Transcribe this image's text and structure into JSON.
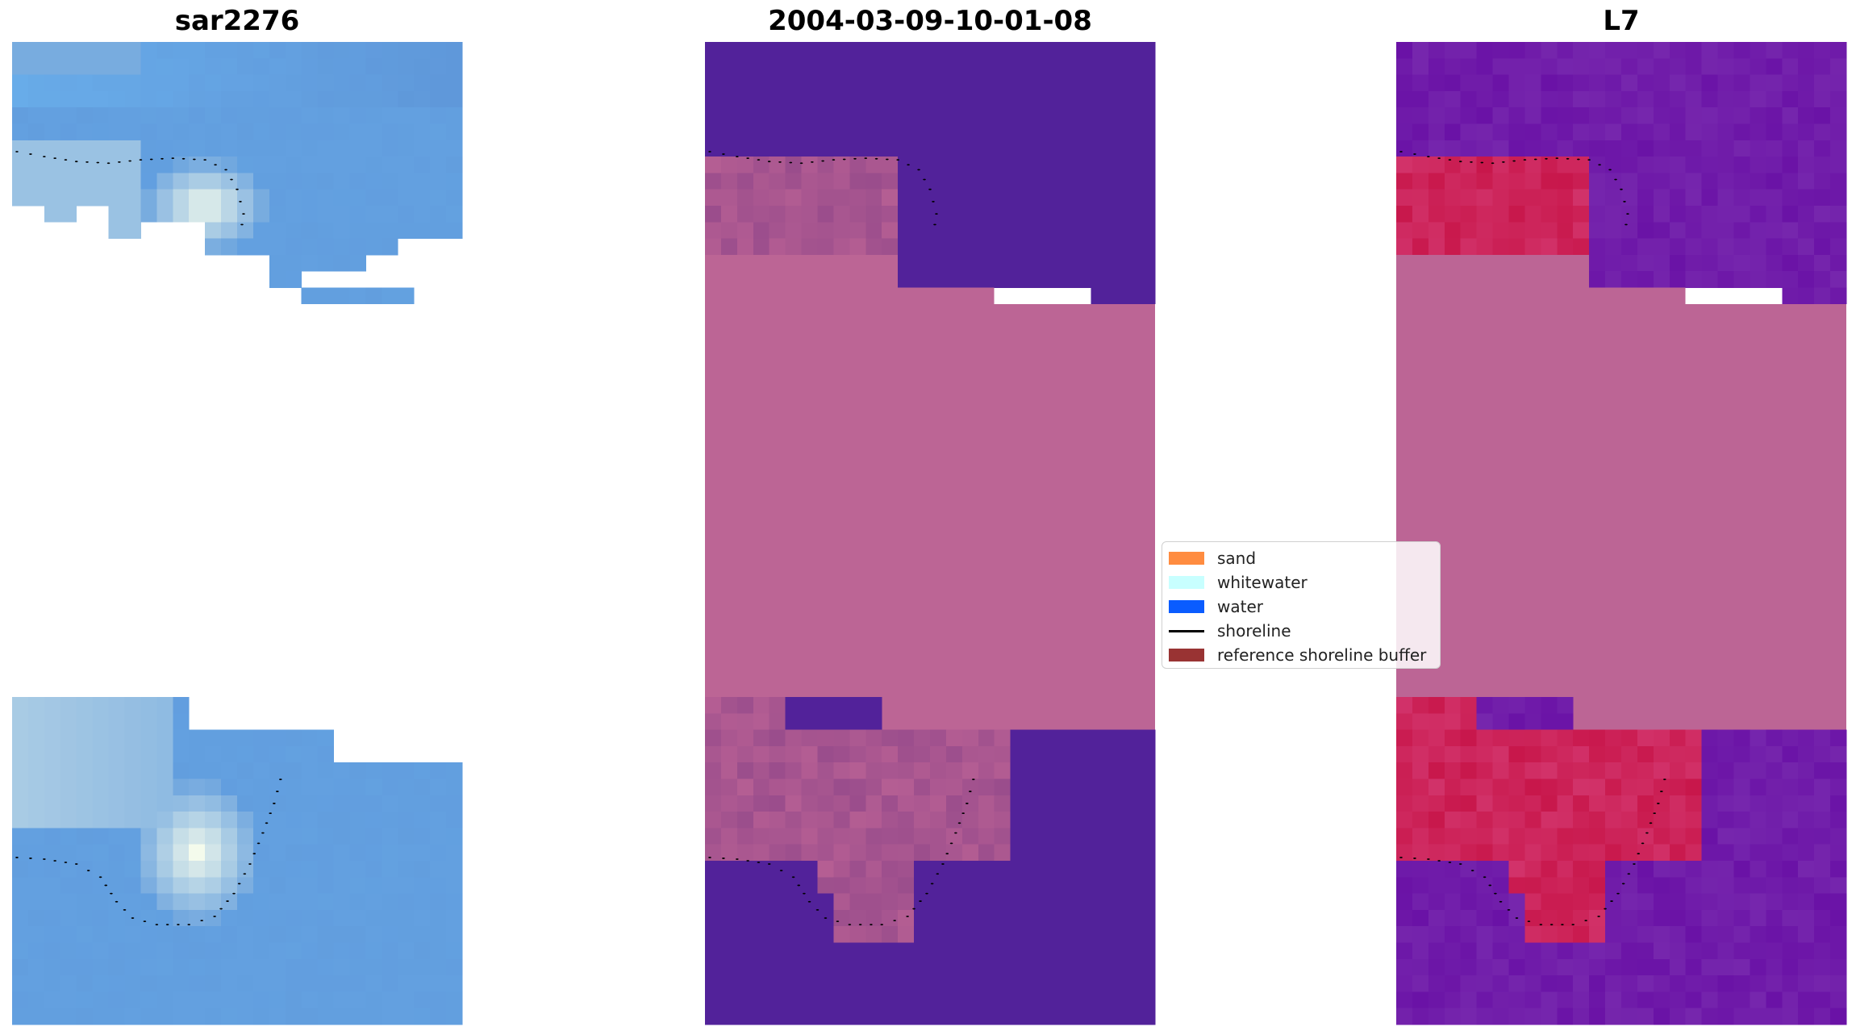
{
  "panels": [
    {
      "id": "rgb",
      "title": "sar2276"
    },
    {
      "id": "classified",
      "title": "2004-03-09-10-01-08"
    },
    {
      "id": "mndwi",
      "title": "L7"
    }
  ],
  "legend": {
    "items": [
      {
        "label": "sand",
        "color": "#ff8c40",
        "kind": "patch"
      },
      {
        "label": "whitewater",
        "color": "#c8ffff",
        "kind": "patch"
      },
      {
        "label": "water",
        "color": "#0a5cff",
        "kind": "patch"
      },
      {
        "label": "shoreline",
        "color": "#000000",
        "kind": "line"
      },
      {
        "label": "reference shoreline buffer",
        "color": "#993333",
        "kind": "patch"
      }
    ]
  },
  "colors": {
    "buffer_fill": "#bc6595",
    "water_class": "#52229a",
    "land_class_tint": "#9c508f",
    "mndwi_water": "#6a12a6",
    "mndwi_land": "#c8174b",
    "rgb_water": "#649bd9",
    "rgb_white": "#f4fbec"
  }
}
